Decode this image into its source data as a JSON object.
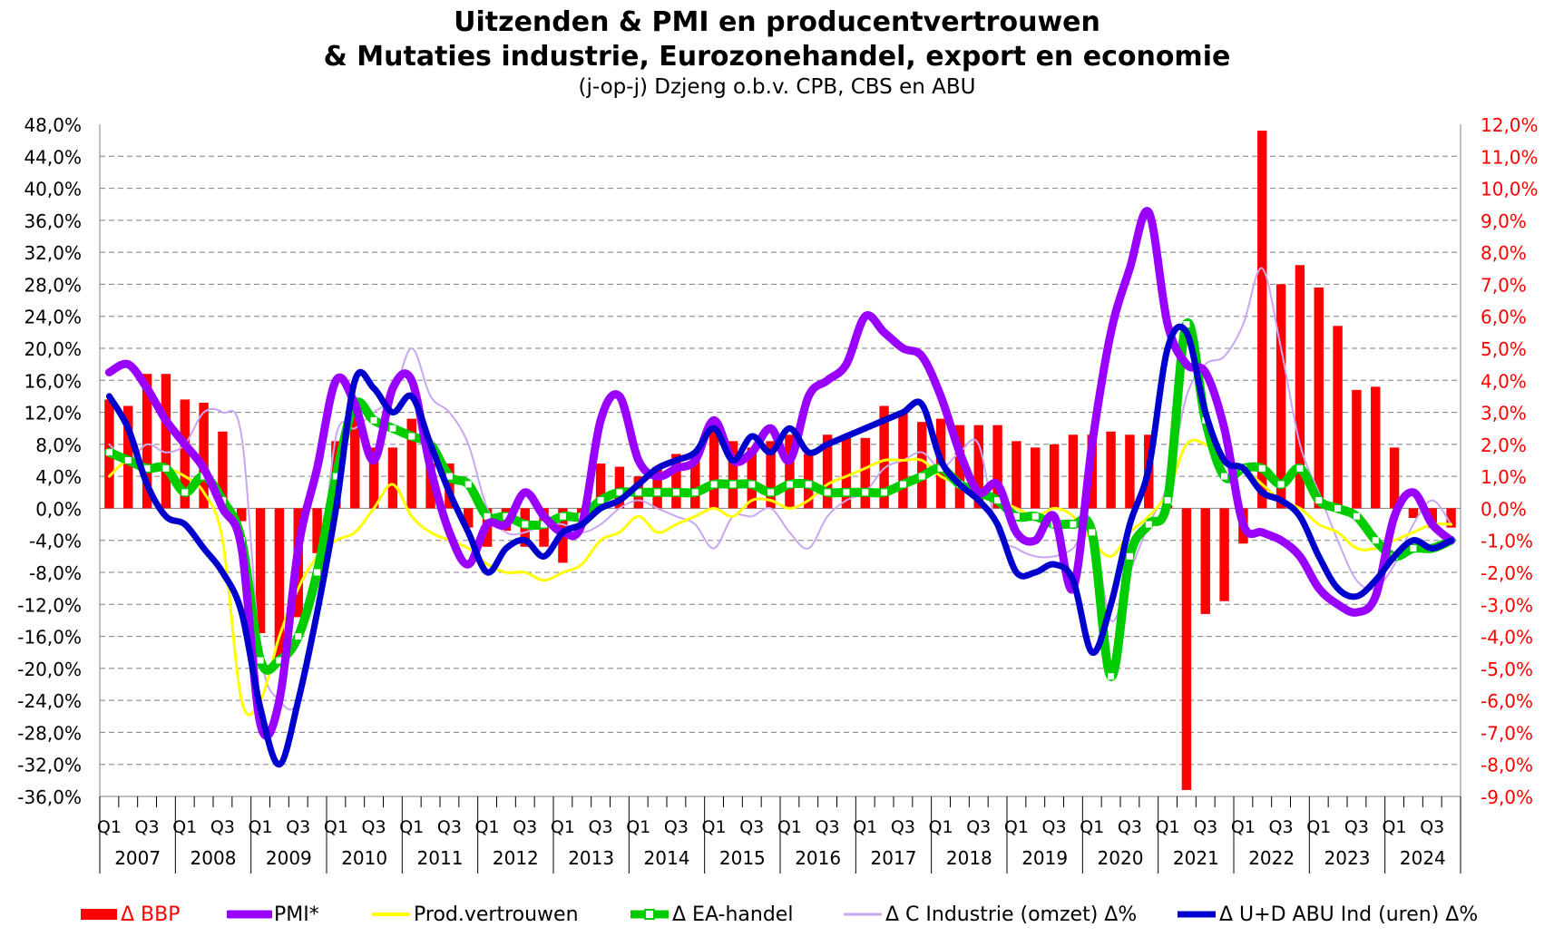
{
  "title": {
    "line1": "Uitzenden & PMI en producentvertrouwen",
    "line2": "& Mutaties industrie, Eurozonehandel, export en economie",
    "line3": "(j-op-j) Dzjeng o.b.v. CPB, CBS en ABU"
  },
  "chart_data": {
    "type": "line",
    "title": "Uitzenden & PMI en producentvertrouwen & Mutaties industrie, Eurozonehandel, export en economie",
    "subtitle": "(j-op-j) Dzjeng o.b.v. CPB, CBS en ABU",
    "grid": true,
    "legend_position": "bottom",
    "y_left": {
      "min": -36,
      "max": 48,
      "step": 4,
      "ticks": [
        "48,0%",
        "44,0%",
        "40,0%",
        "36,0%",
        "32,0%",
        "28,0%",
        "24,0%",
        "20,0%",
        "16,0%",
        "12,0%",
        "8,0%",
        "4,0%",
        "0,0%",
        "-4,0%",
        "-8,0%",
        "-12,0%",
        "-16,0%",
        "-20,0%",
        "-24,0%",
        "-28,0%",
        "-32,0%",
        "-36,0%"
      ]
    },
    "y_right": {
      "min": -9,
      "max": 12,
      "step": 1,
      "color": "#ff0000",
      "ticks": [
        "12,0%",
        "11,0%",
        "10,0%",
        "9,0%",
        "8,0%",
        "7,0%",
        "6,0%",
        "5,0%",
        "4,0%",
        "3,0%",
        "2,0%",
        "1,0%",
        "0,0%",
        "-1,0%",
        "-2,0%",
        "-3,0%",
        "-4,0%",
        "-5,0%",
        "-6,0%",
        "-7,0%",
        "-8,0%",
        "-9,0%"
      ]
    },
    "x_quarter_labels": [
      "Q1",
      "Q3",
      "Q1",
      "Q3",
      "Q1",
      "Q3",
      "Q1",
      "Q3",
      "Q1",
      "Q3",
      "Q1",
      "Q3",
      "Q1",
      "Q3",
      "Q1",
      "Q3",
      "Q1",
      "Q3",
      "Q1",
      "Q3",
      "Q1",
      "Q3",
      "Q1",
      "Q3",
      "Q1",
      "Q3",
      "Q1",
      "Q3",
      "Q1",
      "Q3",
      "Q1",
      "Q3",
      "Q1",
      "Q3",
      "Q1",
      "Q3"
    ],
    "years": [
      "2007",
      "2008",
      "2009",
      "2010",
      "2011",
      "2012",
      "2013",
      "2014",
      "2015",
      "2016",
      "2017",
      "2018",
      "2019",
      "2020",
      "2021",
      "2022",
      "2023",
      "2024"
    ],
    "quarters_count": 72,
    "series": [
      {
        "name": "Δ BBP",
        "kind": "bar",
        "axis": "right",
        "color": "#ff0000",
        "values": [
          3.4,
          3.2,
          4.2,
          4.2,
          3.4,
          3.3,
          2.4,
          -0.4,
          -3.9,
          -4.9,
          -3.4,
          -1.4,
          2.1,
          3.3,
          1.9,
          1.9,
          2.8,
          1.4,
          1.4,
          -0.6,
          -1.2,
          -0.7,
          -1.2,
          -1.2,
          -1.7,
          -0.2,
          1.4,
          1.3,
          1.0,
          1.3,
          1.7,
          1.7,
          2.5,
          2.1,
          1.9,
          2.1,
          2.3,
          1.7,
          2.3,
          2.3,
          2.2,
          3.2,
          3.0,
          2.7,
          2.8,
          2.6,
          2.6,
          2.6,
          2.1,
          1.9,
          2.0,
          2.3,
          2.3,
          2.4,
          2.3,
          2.3,
          0.1,
          -8.8,
          -3.3,
          -2.9,
          -1.1,
          11.8,
          7.0,
          7.6,
          6.9,
          5.7,
          3.7,
          3.8,
          1.9,
          -0.3,
          -0.6,
          -0.6
        ]
      },
      {
        "name": "PMI*",
        "kind": "line",
        "axis": "left",
        "color": "#9900ff",
        "width": 9,
        "values": [
          17,
          18,
          15,
          11,
          8,
          5,
          0,
          -5,
          -27,
          -24,
          -5,
          5,
          16,
          13,
          6,
          15,
          16,
          5,
          -3,
          -7,
          -2,
          -2,
          2,
          -1,
          -3,
          -2,
          11,
          14,
          6,
          4,
          5,
          6,
          11,
          6,
          7,
          10,
          6,
          14,
          16,
          18,
          24,
          22,
          20,
          19,
          14,
          7,
          2,
          3,
          -3,
          -4,
          -1,
          -10,
          8,
          22,
          30,
          37,
          23,
          18,
          17,
          10,
          -2,
          -3,
          -4,
          -6,
          -10,
          -12,
          -13,
          -11,
          -1,
          2,
          -2,
          -4
        ]
      },
      {
        "name": "Prod.vertrouwen",
        "kind": "line",
        "axis": "left",
        "color": "#ffff00",
        "width": 3,
        "values": [
          4,
          6,
          5,
          5,
          4,
          2,
          -4,
          -24,
          -24,
          -16,
          -10,
          -6,
          -4,
          -3,
          0,
          3,
          -1,
          -3,
          -4,
          -5,
          -7,
          -8,
          -8,
          -9,
          -8,
          -7,
          -4,
          -3,
          -1,
          -3,
          -2,
          -1,
          0,
          -1,
          1,
          1,
          0,
          1,
          3,
          4,
          5,
          6,
          6,
          6,
          4,
          3,
          2,
          1,
          0,
          -1,
          0,
          -1,
          -4,
          -6,
          -3,
          -1,
          2,
          8,
          8,
          6,
          5,
          3,
          1,
          0,
          -2,
          -3,
          -5,
          -5,
          -4,
          -3,
          -2,
          -2
        ]
      },
      {
        "name": "Δ EA-handel",
        "kind": "line",
        "axis": "left",
        "color": "#00cc00",
        "width": 10,
        "marker": "square",
        "values": [
          7,
          6,
          5,
          5,
          2,
          4,
          1,
          -4,
          -19,
          -19,
          -16,
          -8,
          4,
          13,
          11,
          10,
          9,
          8,
          4,
          3,
          -1,
          -1,
          -2,
          -2,
          -1,
          -1,
          1,
          2,
          2,
          2,
          2,
          2,
          3,
          3,
          3,
          2,
          3,
          3,
          2,
          2,
          2,
          2,
          3,
          4,
          5,
          3,
          2,
          1,
          -1,
          -1,
          -2,
          -2,
          -3,
          -21,
          -6,
          -2,
          1,
          23,
          11,
          4,
          5,
          5,
          3,
          5,
          1,
          0,
          -1,
          -4,
          -6,
          -5,
          -5,
          -4
        ]
      },
      {
        "name": "Δ C Industrie (omzet) Δ%",
        "kind": "line",
        "axis": "left",
        "color": "#c9a6f0",
        "width": 2,
        "values": [
          8,
          6,
          8,
          7,
          8,
          12,
          12,
          9,
          -18,
          -24,
          -24,
          -12,
          9,
          10,
          12,
          14,
          20,
          14,
          12,
          8,
          0,
          -3,
          -3,
          -2,
          -2,
          -3,
          -2,
          0,
          1,
          0,
          -1,
          -2,
          -5,
          -1,
          -1,
          0,
          -3,
          -5,
          -1,
          1,
          2,
          5,
          6,
          7,
          5,
          7,
          8,
          -3,
          -5,
          -6,
          -6,
          -5,
          -2,
          -14,
          -8,
          -2,
          3,
          14,
          18,
          19,
          23,
          30,
          20,
          8,
          2,
          -4,
          -9,
          -10,
          -7,
          -2,
          1,
          -2
        ]
      },
      {
        "name": "Δ U+D ABU Ind (uren) Δ%",
        "kind": "line",
        "axis": "left",
        "color": "#0000cc",
        "width": 7,
        "values": [
          14,
          10,
          3,
          -1,
          -2,
          -5,
          -8,
          -13,
          -25,
          -32,
          -24,
          -13,
          0,
          16,
          15,
          12,
          14,
          8,
          2,
          -3,
          -8,
          -5,
          -4,
          -6,
          -3,
          -2,
          0,
          1,
          3,
          5,
          6,
          7,
          10,
          6,
          9,
          7,
          10,
          7,
          8,
          9,
          10,
          11,
          12,
          13,
          6,
          3,
          1,
          -2,
          -8,
          -8,
          -7,
          -9,
          -18,
          -12,
          -2,
          5,
          20,
          22,
          12,
          6,
          5,
          2,
          1,
          -1,
          -6,
          -10,
          -11,
          -9,
          -6,
          -4,
          -5,
          -4
        ]
      }
    ]
  },
  "legend": {
    "bbp": "Δ BBP",
    "pmi": "PMI*",
    "prod": "Prod.vertrouwen",
    "ea": "Δ EA-handel",
    "industrie": "Δ C Industrie (omzet) Δ%",
    "abu": "Δ U+D ABU Ind (uren) Δ%"
  }
}
